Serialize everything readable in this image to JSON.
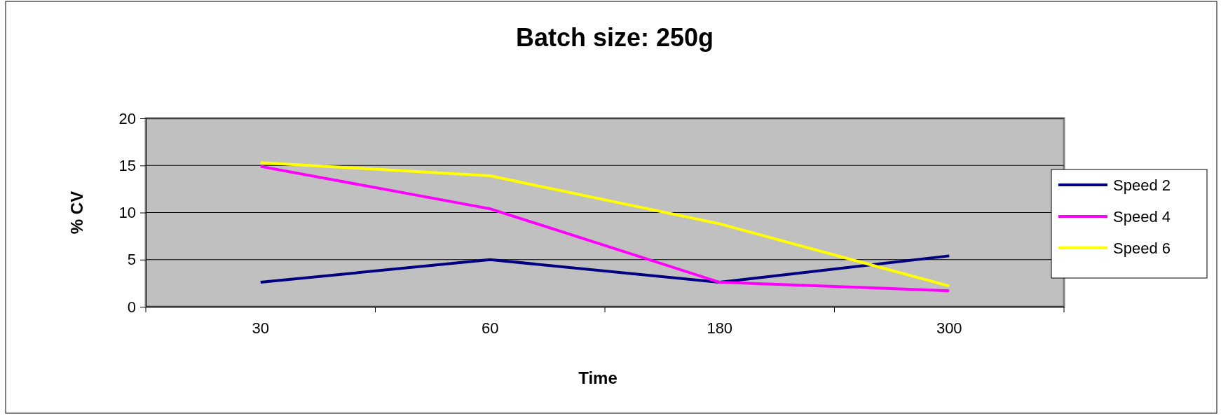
{
  "chart_data": {
    "type": "line",
    "title": "Batch size: 250g",
    "xlabel": "Time",
    "ylabel": "% CV",
    "categories": [
      "30",
      "60",
      "180",
      "300"
    ],
    "series": [
      {
        "name": "Speed 2",
        "color": "#000080",
        "values": [
          2.6,
          5.0,
          2.6,
          5.4
        ]
      },
      {
        "name": "Speed 4",
        "color": "#ff00ff",
        "values": [
          14.9,
          10.4,
          2.6,
          1.7
        ]
      },
      {
        "name": "Speed 6",
        "color": "#ffff00",
        "values": [
          15.3,
          13.9,
          8.8,
          2.2
        ]
      }
    ],
    "ylim": [
      0,
      20
    ],
    "yticks": [
      0,
      5,
      10,
      15,
      20
    ],
    "grid": "y",
    "legend": "right",
    "marker": "none",
    "line_style": "solid"
  }
}
